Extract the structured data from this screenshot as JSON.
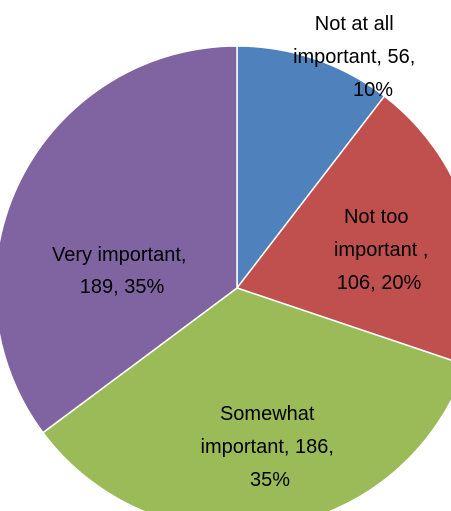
{
  "chart_data": {
    "type": "pie",
    "title": "",
    "slices": [
      {
        "category": "Not at all important",
        "value": 56,
        "percent": "10%",
        "color": "#4F81BD",
        "label_lines": [
          "Not at all",
          "important, 56,",
          "10%"
        ]
      },
      {
        "category": "Not too important",
        "value": 106,
        "percent": "20%",
        "color": "#C0504D",
        "label_lines": [
          "Not too",
          "important ,",
          "106, 20%"
        ]
      },
      {
        "category": "Somewhat important",
        "value": 186,
        "percent": "35%",
        "color": "#9BBB59",
        "label_lines": [
          "Somewhat",
          "important, 186,",
          "35%"
        ]
      },
      {
        "category": "Very important",
        "value": 189,
        "percent": "35%",
        "color": "#8064A2",
        "label_lines": [
          "Very important,",
          "189, 35%"
        ]
      }
    ],
    "legend": "none"
  }
}
